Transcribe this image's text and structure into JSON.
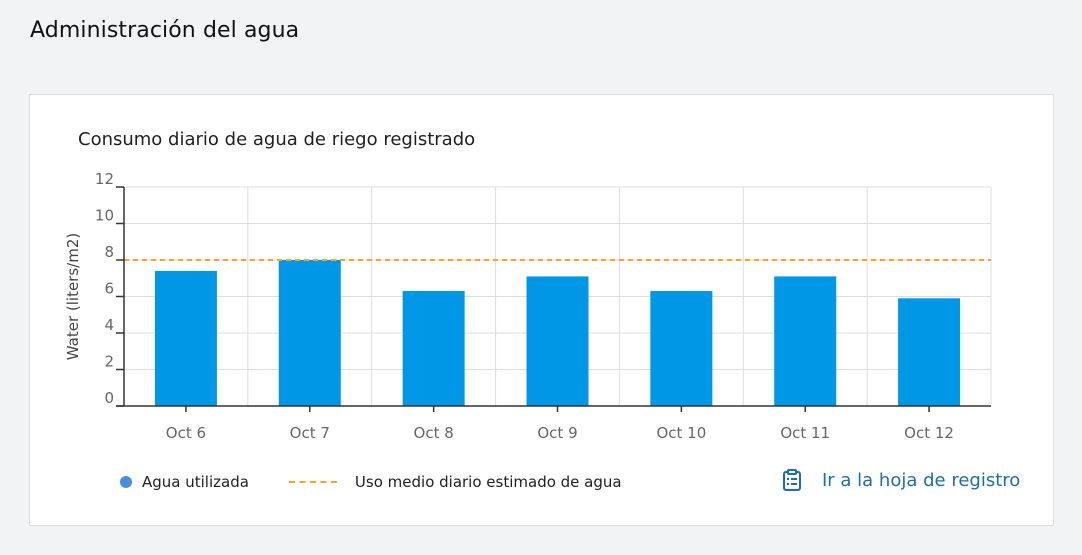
{
  "page": {
    "title": "Administración del agua"
  },
  "card": {
    "chart_title": "Consumo diario de agua de riego registrado",
    "link_label": "Ir a la hoja de registro",
    "link_icon": "clipboard-icon"
  },
  "legend": {
    "bars_label": "Agua utilizada",
    "line_label": "Uso medio diario estimado de agua"
  },
  "colors": {
    "bar": "#0098e6",
    "reference_line": "#f5a623",
    "legend_dot": "#4a90d9",
    "link": "#1c6fa6",
    "grid": "#dddddd"
  },
  "chart_data": {
    "type": "bar",
    "title": "Consumo diario de agua de riego registrado",
    "ylabel": "Water (liters/m2)",
    "xlabel": "",
    "categories": [
      "Oct 6",
      "Oct 7",
      "Oct 8",
      "Oct 9",
      "Oct 10",
      "Oct 11",
      "Oct 12"
    ],
    "series": [
      {
        "name": "Agua utilizada",
        "values": [
          7.4,
          8.0,
          6.3,
          7.1,
          6.3,
          7.1,
          5.9
        ]
      }
    ],
    "reference_line": {
      "name": "Uso medio diario estimado de agua",
      "value": 8
    },
    "ylim": [
      0,
      12
    ],
    "yticks": [
      0,
      2,
      4,
      6,
      8,
      10,
      12
    ],
    "grid": true,
    "legend_position": "bottom"
  }
}
